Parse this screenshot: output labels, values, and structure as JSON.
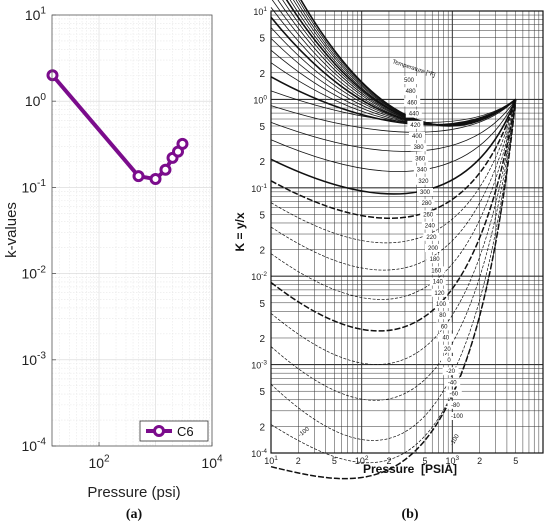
{
  "chart_data": [
    {
      "id": "a",
      "type": "line",
      "panel_label": "(a)",
      "xlabel": "Pressure (psi)",
      "ylabel": "k-values",
      "xscale": "log",
      "yscale": "log",
      "xlim": [
        14.7,
        10000
      ],
      "ylim": [
        0.0001,
        10
      ],
      "grid": true,
      "legend_position": "bottom-right",
      "x_ticks": [
        {
          "value": 100,
          "base": "10",
          "exp": "2"
        },
        {
          "value": 10000,
          "base": "10",
          "exp": "4"
        }
      ],
      "y_ticks": [
        {
          "value": 10,
          "base": "10",
          "exp": "1"
        },
        {
          "value": 1,
          "base": "10",
          "exp": "0"
        },
        {
          "value": 0.1,
          "base": "10",
          "exp": "-1"
        },
        {
          "value": 0.01,
          "base": "10",
          "exp": "-2"
        },
        {
          "value": 0.001,
          "base": "10",
          "exp": "-3"
        },
        {
          "value": 0.0001,
          "base": "10",
          "exp": "-4"
        }
      ],
      "series": [
        {
          "name": "C6",
          "color": "#7b0c8c",
          "points": [
            {
              "x": 15,
              "y": 2.0
            },
            {
              "x": 500,
              "y": 0.135
            },
            {
              "x": 1000,
              "y": 0.125
            },
            {
              "x": 1500,
              "y": 0.16
            },
            {
              "x": 2000,
              "y": 0.22
            },
            {
              "x": 2500,
              "y": 0.26
            },
            {
              "x": 3000,
              "y": 0.32
            }
          ]
        }
      ]
    },
    {
      "id": "b",
      "type": "line",
      "panel_label": "(b)",
      "xlabel": "Pressure  [PSIA]",
      "ylabel": "K = y/x",
      "xscale": "log",
      "yscale": "log",
      "xlim": [
        10,
        10000
      ],
      "ylim": [
        0.0001,
        10
      ],
      "grid": true,
      "legend_title": "Temperature [°F]",
      "x_tick_labels": [
        "10",
        "2",
        "5",
        "10",
        "2",
        "5",
        "10",
        "2",
        "5"
      ],
      "x_tick_exps": [
        "1",
        "",
        "",
        "2",
        "",
        "",
        "3",
        "",
        ""
      ],
      "y_ticks": [
        {
          "value": 10,
          "base": "10",
          "exp": "1"
        },
        {
          "value": 1,
          "base": "10",
          "exp": "0"
        },
        {
          "value": 0.1,
          "base": "10",
          "exp": "-1"
        },
        {
          "value": 0.01,
          "base": "10",
          "exp": "-2"
        },
        {
          "value": 0.001,
          "base": "10",
          "exp": "-3"
        },
        {
          "value": 0.0001,
          "base": "10",
          "exp": "-4"
        }
      ],
      "y_minor_labels": [
        "5",
        "2"
      ],
      "temperature_labels": [
        "500",
        "480",
        "460",
        "440",
        "420",
        "400",
        "380",
        "360",
        "340",
        "320",
        "300",
        "280",
        "260",
        "240",
        "220",
        "200",
        "180",
        "160",
        "140",
        "120",
        "100",
        "80",
        "60",
        "40",
        "20",
        "0",
        "-20",
        "-40",
        "-60",
        "-80",
        "-100"
      ],
      "bottom_labels": [
        "-100",
        "-100"
      ],
      "convergence": {
        "x": 5000,
        "y": 1.0
      },
      "curves": [
        {
          "temp": 500,
          "k_at_10": 58
        },
        {
          "temp": 480,
          "k_at_10": 50
        },
        {
          "temp": 460,
          "k_at_10": 43
        },
        {
          "temp": 440,
          "k_at_10": 37
        },
        {
          "temp": 420,
          "k_at_10": 31
        },
        {
          "temp": 400,
          "k_at_10": 26
        },
        {
          "temp": 380,
          "k_at_10": 21.5
        },
        {
          "temp": 360,
          "k_at_10": 17.5
        },
        {
          "temp": 340,
          "k_at_10": 14
        },
        {
          "temp": 320,
          "k_at_10": 11
        },
        {
          "temp": 300,
          "k_at_10": 8.5
        },
        {
          "temp": 280,
          "k_at_10": 6.5
        },
        {
          "temp": 260,
          "k_at_10": 4.9
        },
        {
          "temp": 240,
          "k_at_10": 3.6
        },
        {
          "temp": 220,
          "k_at_10": 2.6
        },
        {
          "temp": 200,
          "k_at_10": 1.8
        },
        {
          "temp": 180,
          "k_at_10": 1.25
        },
        {
          "temp": 160,
          "k_at_10": 0.85
        },
        {
          "temp": 140,
          "k_at_10": 0.55
        },
        {
          "temp": 120,
          "k_at_10": 0.35
        },
        {
          "temp": 100,
          "k_at_10": 0.21
        },
        {
          "temp": 80,
          "k_at_10": 0.12
        },
        {
          "temp": 60,
          "k_at_10": 0.068
        },
        {
          "temp": 40,
          "k_at_10": 0.036
        },
        {
          "temp": 20,
          "k_at_10": 0.018
        },
        {
          "temp": 0,
          "k_at_10": 0.0085
        },
        {
          "temp": -20,
          "k_at_10": 0.0038
        },
        {
          "temp": -40,
          "k_at_10": 0.0016
        },
        {
          "temp": -60,
          "k_at_10": 0.0006
        },
        {
          "temp": -80,
          "k_at_10": 0.00021
        },
        {
          "temp": -100,
          "k_at_10": 7e-05
        }
      ]
    }
  ]
}
